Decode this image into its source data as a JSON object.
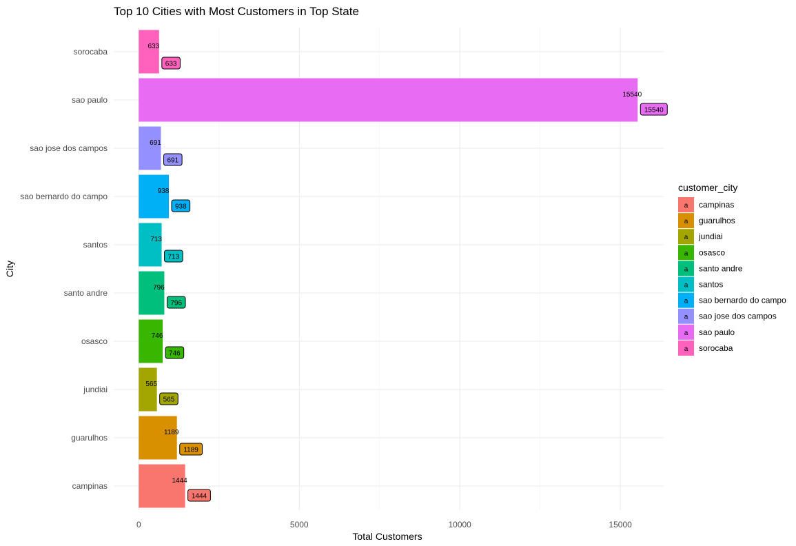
{
  "chart_data": {
    "type": "bar",
    "orientation": "horizontal",
    "title": "Top 10 Cities with Most Customers in Top State",
    "xlabel": "Total Customers",
    "ylabel": "City",
    "categories": [
      "campinas",
      "guarulhos",
      "jundiai",
      "osasco",
      "santo andre",
      "santos",
      "sao bernardo do campo",
      "sao jose dos campos",
      "sao paulo",
      "sorocaba"
    ],
    "values": [
      1444,
      1189,
      565,
      746,
      796,
      713,
      938,
      691,
      15540,
      633
    ],
    "colors": [
      "#F8766D",
      "#D89000",
      "#A3A500",
      "#39B600",
      "#00BF7D",
      "#00BFC4",
      "#00B0F6",
      "#9590FF",
      "#E76BF3",
      "#FF62BC"
    ],
    "xticks": [
      0,
      5000,
      10000,
      15000
    ],
    "xtick_labels": [
      "0",
      "5000",
      "10000",
      "15000"
    ],
    "xlim": [
      -780,
      16350
    ],
    "grid": true,
    "legend": {
      "title": "customer_city",
      "position": "right",
      "key_glyph": "a",
      "entries": [
        "campinas",
        "guarulhos",
        "jundiai",
        "osasco",
        "santo andre",
        "santos",
        "sao bernardo do campo",
        "sao jose dos campos",
        "sao paulo",
        "sorocaba"
      ]
    }
  }
}
